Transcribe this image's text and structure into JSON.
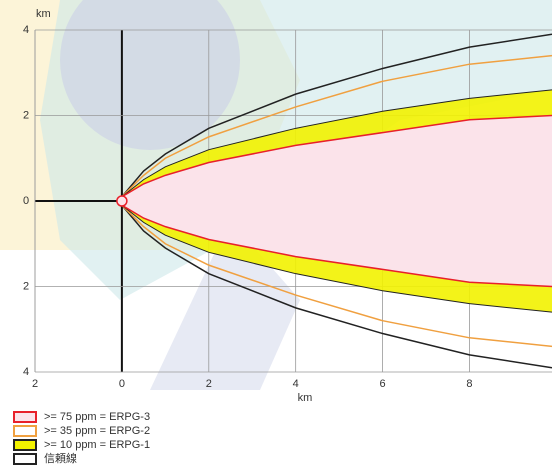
{
  "chart_data": {
    "type": "threat-zone",
    "x_label": "km",
    "y_label": "km",
    "x": [
      0,
      0.5,
      1,
      2,
      4,
      6,
      8,
      9.9
    ],
    "series": [
      {
        "name": "信頼線",
        "color": "#222222",
        "values": [
          0.1,
          0.7,
          1.1,
          1.7,
          2.5,
          3.1,
          3.6,
          3.9
        ]
      },
      {
        "name": ">= 35 ppm = ERPG-2",
        "color": "#f0a040",
        "values": [
          0.1,
          0.6,
          1.0,
          1.5,
          2.2,
          2.8,
          3.2,
          3.4
        ]
      },
      {
        "name": ">= 10 ppm = ERPG-1",
        "color": "#f2f200",
        "values": [
          0.1,
          0.5,
          0.8,
          1.2,
          1.7,
          2.1,
          2.4,
          2.6
        ]
      },
      {
        "name": ">= 75 ppm = ERPG-3",
        "color": "#e8202a",
        "values": [
          0.1,
          0.4,
          0.6,
          0.9,
          1.3,
          1.6,
          1.9,
          2.0
        ]
      }
    ],
    "legend_order": [
      3,
      1,
      2,
      0
    ],
    "xlim": [
      -2,
      9.9
    ],
    "ylim": [
      -4,
      4
    ],
    "xticks": [
      {
        "value": -2,
        "label": "2"
      },
      0,
      2,
      4,
      6,
      8
    ],
    "yticks": [
      {
        "value": -4,
        "label": "4"
      },
      {
        "value": -2,
        "label": "2"
      },
      0,
      2,
      4
    ],
    "grid": true
  }
}
